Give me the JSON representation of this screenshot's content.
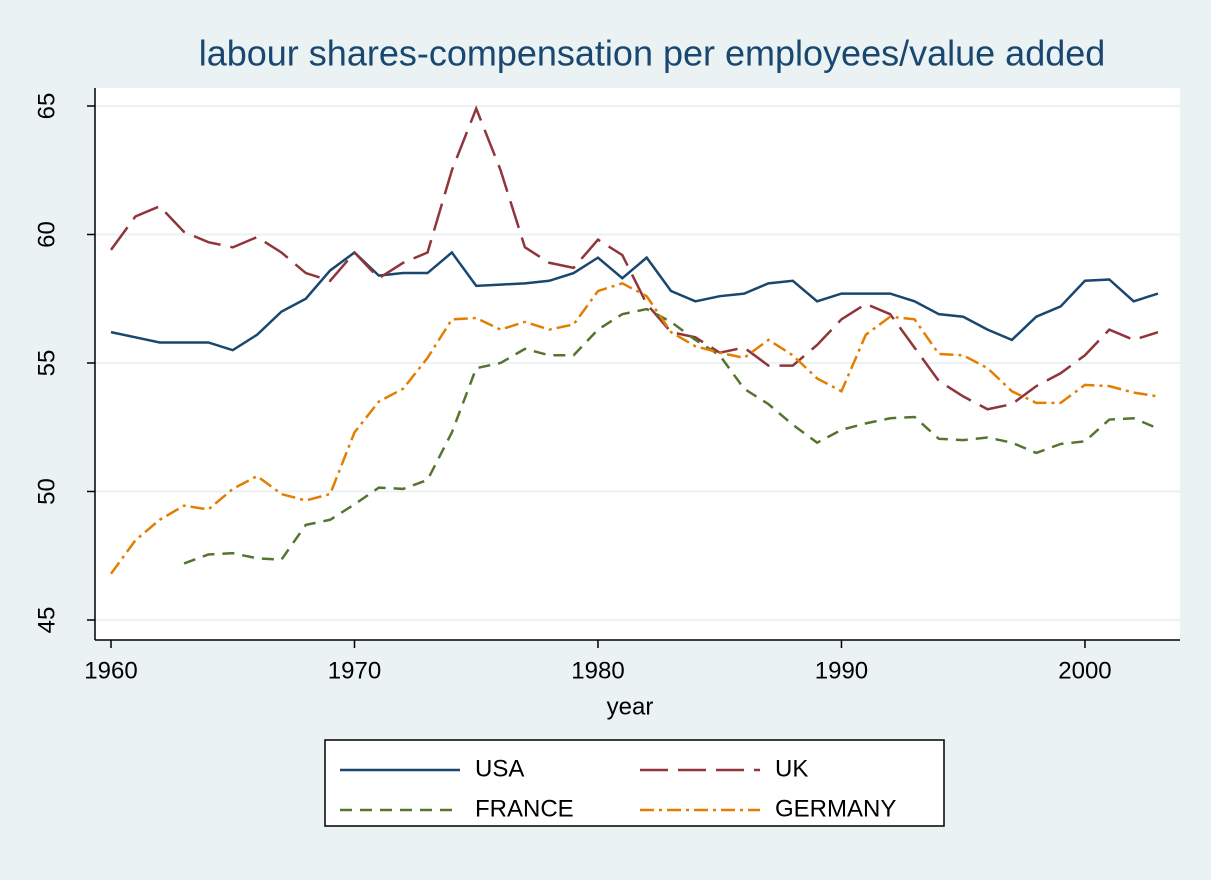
{
  "chart_data": {
    "type": "line",
    "title": "labour shares-compensation per employees/value added",
    "x_label": "year",
    "x": [
      1960,
      1961,
      1962,
      1963,
      1964,
      1965,
      1966,
      1967,
      1968,
      1969,
      1970,
      1971,
      1972,
      1973,
      1974,
      1975,
      1976,
      1977,
      1978,
      1979,
      1980,
      1981,
      1982,
      1983,
      1984,
      1985,
      1986,
      1987,
      1988,
      1989,
      1990,
      1991,
      1992,
      1993,
      1994,
      1995,
      1996,
      1997,
      1998,
      1999,
      2000,
      2001,
      2002,
      2003
    ],
    "xlim": [
      1960,
      2003
    ],
    "xticks": [
      1960,
      1970,
      1980,
      1990,
      2000
    ],
    "ylim": [
      45,
      65
    ],
    "yticks": [
      45,
      50,
      55,
      60,
      65
    ],
    "grid": true,
    "legend": "bottom",
    "series": [
      {
        "name": "USA",
        "color": "#1a476f",
        "dash": "solid",
        "values": [
          56.2,
          56.0,
          55.8,
          55.8,
          55.8,
          55.5,
          56.1,
          57.0,
          57.5,
          58.6,
          59.3,
          58.4,
          58.5,
          58.5,
          59.3,
          58.0,
          58.05,
          58.1,
          58.2,
          58.5,
          59.1,
          58.3,
          59.1,
          57.8,
          57.4,
          57.6,
          57.7,
          58.1,
          58.2,
          57.4,
          57.7,
          57.7,
          57.7,
          57.4,
          56.9,
          56.8,
          56.3,
          55.9,
          56.8,
          57.2,
          58.2,
          58.25,
          57.4,
          57.7
        ]
      },
      {
        "name": "UK",
        "color": "#90353b",
        "dash": "longdash",
        "values": [
          59.4,
          60.7,
          61.1,
          60.1,
          59.7,
          59.5,
          59.9,
          59.3,
          58.5,
          58.2,
          59.3,
          58.3,
          58.9,
          59.3,
          62.5,
          64.9,
          62.5,
          59.5,
          58.9,
          58.7,
          59.8,
          59.2,
          57.3,
          56.2,
          56.0,
          55.4,
          55.6,
          54.9,
          54.9,
          55.7,
          56.7,
          57.3,
          56.9,
          55.6,
          54.3,
          53.7,
          53.2,
          53.4,
          54.1,
          54.6,
          55.3,
          56.3,
          55.9,
          56.2
        ]
      },
      {
        "name": "FRANCE",
        "color": "#55752f",
        "dash": "dash",
        "values": [
          null,
          null,
          null,
          47.2,
          47.55,
          47.6,
          47.4,
          47.35,
          48.7,
          48.9,
          49.5,
          50.15,
          50.1,
          50.45,
          52.3,
          54.8,
          55.0,
          55.55,
          55.3,
          55.3,
          56.3,
          56.9,
          57.1,
          56.6,
          55.9,
          55.3,
          54.0,
          53.4,
          52.6,
          51.9,
          52.4,
          52.65,
          52.85,
          52.9,
          52.05,
          52.0,
          52.1,
          51.9,
          51.5,
          51.85,
          51.95,
          52.8,
          52.85,
          52.45
        ]
      },
      {
        "name": "GERMANY",
        "color": "#e37e00",
        "dash": "dashdot",
        "values": [
          46.8,
          48.1,
          48.9,
          49.45,
          49.3,
          50.1,
          50.6,
          49.9,
          49.65,
          49.9,
          52.3,
          53.5,
          54.0,
          55.2,
          56.7,
          56.75,
          56.3,
          56.6,
          56.3,
          56.5,
          57.8,
          58.1,
          57.6,
          56.2,
          55.65,
          55.4,
          55.2,
          55.9,
          55.3,
          54.4,
          53.9,
          56.1,
          56.8,
          56.7,
          55.35,
          55.3,
          54.8,
          53.9,
          53.45,
          53.45,
          54.15,
          54.1,
          53.85,
          53.7
        ]
      }
    ]
  }
}
